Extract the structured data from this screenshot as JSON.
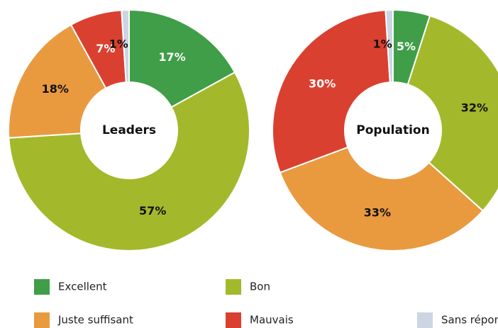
{
  "chart_data": [
    {
      "type": "donut",
      "title": "Leaders",
      "categories": [
        "Excellent",
        "Bon",
        "Juste suffisant",
        "Mauvais",
        "Sans réponse"
      ],
      "values": [
        17,
        57,
        18,
        7,
        1
      ],
      "value_labels": [
        "17%",
        "57%",
        "18%",
        "7%",
        "1%"
      ],
      "colors": [
        "#3f9e47",
        "#a3b92b",
        "#e99a3f",
        "#da4030",
        "#ccd5e3"
      ]
    },
    {
      "type": "donut",
      "title": "Population",
      "categories": [
        "Excellent",
        "Bon",
        "Juste suffisant",
        "Mauvais",
        "Sans réponse"
      ],
      "values": [
        5,
        32,
        33,
        30,
        1
      ],
      "value_labels": [
        "5%",
        "32%",
        "33%",
        "30%",
        "1%"
      ],
      "colors": [
        "#3f9e47",
        "#a3b92b",
        "#e99a3f",
        "#da4030",
        "#ccd5e3"
      ]
    }
  ]
}
